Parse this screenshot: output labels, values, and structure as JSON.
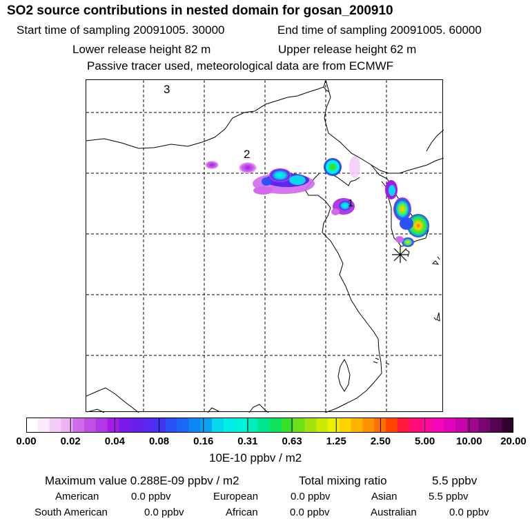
{
  "header": {
    "title": "SO2 source contributions in nested domain for gosan_200910",
    "start_time": "Start time of sampling 20091005. 30000",
    "end_time": "End time of sampling 20091005. 60000",
    "lower_height": "Lower release height   82 m",
    "upper_height": "Upper release height   62 m",
    "tracer_note": "Passive tracer used, meteorological data are from ECMWF"
  },
  "map": {
    "markers": [
      "1",
      "2",
      "3"
    ],
    "receptor_symbol": "✳"
  },
  "colorbar": {
    "ticks": [
      "0.00",
      "0.02",
      "0.04",
      "0.08",
      "0.16",
      "0.31",
      "0.63",
      "1.25",
      "2.50",
      "5.00",
      "10.00",
      "20.00"
    ],
    "colors": [
      "#ffffff",
      "#fbeafc",
      "#f4cdf7",
      "#eeb3f4",
      "#cf6aeb",
      "#c24ee8",
      "#b237e6",
      "#a51ae4",
      "#7a1ae6",
      "#6a1ee9",
      "#5a28ee",
      "#4333f2",
      "#2a52f4",
      "#1a69f4",
      "#0e86f4",
      "#0aa0f3",
      "#05d9f0",
      "#02ecea",
      "#00f2d8",
      "#00eeb9",
      "#00e68e",
      "#10e25a",
      "#38e02c",
      "#6ee018",
      "#a3e40c",
      "#cbea04",
      "#eff000",
      "#ffd200",
      "#ffb200",
      "#ff9100",
      "#ff6f00",
      "#ff4200",
      "#ff1a3c",
      "#ff0f76",
      "#ff089c",
      "#f505b8",
      "#e003bc",
      "#c703ad",
      "#a3048f",
      "#7b0570",
      "#540451",
      "#2f0230"
    ],
    "unit_label": "10E-10 ppbv / m2"
  },
  "stats": {
    "max_label": "Maximum value  0.288E-09 ppbv / m2",
    "total_label": "Total mixing ratio",
    "total_value": "5.5 ppbv",
    "regions": [
      {
        "name": "American",
        "value": "0.0 ppbv"
      },
      {
        "name": "European",
        "value": "0.0 ppbv"
      },
      {
        "name": "Asian",
        "value": "5.5 ppbv"
      },
      {
        "name": "South American",
        "value": "0.0 ppbv"
      },
      {
        "name": "African",
        "value": "0.0 ppbv"
      },
      {
        "name": "Australian",
        "value": "0.0 ppbv"
      }
    ]
  }
}
